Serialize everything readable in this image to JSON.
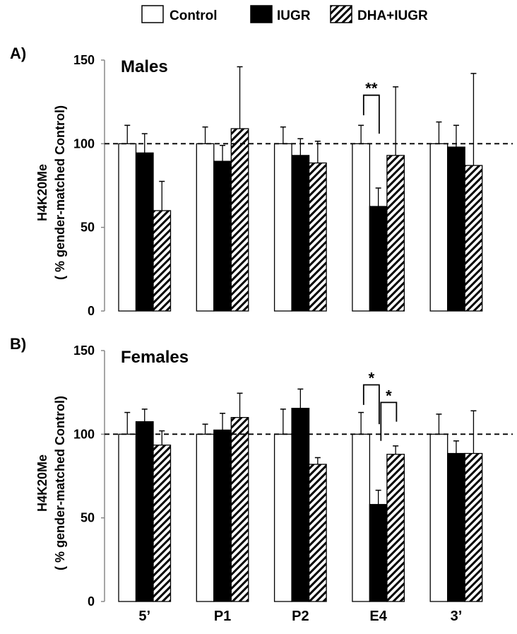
{
  "legend": [
    {
      "label": "Control",
      "fill": "white"
    },
    {
      "label": "IUGR",
      "fill": "black"
    },
    {
      "label": "DHA+IUGR",
      "fill": "hatched"
    }
  ],
  "ylabel_line1": "H4K20Me",
  "ylabel_line2": "( % gender-matched Control)",
  "chart_data": [
    {
      "type": "bar",
      "panel_label": "A)",
      "title": "Males",
      "categories": [
        "5’",
        "P1",
        "P2",
        "E4",
        "3’"
      ],
      "ylim": [
        0,
        150
      ],
      "yticks": [
        "0",
        "50",
        "100",
        "150"
      ],
      "reference_line": 100,
      "series": [
        {
          "name": "Control",
          "values": [
            100,
            100,
            100,
            100,
            100
          ],
          "error_upper": [
            111,
            110,
            110,
            111,
            113
          ]
        },
        {
          "name": "IUGR",
          "values": [
            94.5,
            89.5,
            93,
            62.5,
            98
          ],
          "error_upper": [
            106,
            99,
            103,
            73.5,
            111
          ]
        },
        {
          "name": "DHA+IUGR",
          "values": [
            60,
            109,
            88.5,
            93,
            87
          ],
          "error_upper": [
            77.5,
            146,
            101.5,
            134,
            142
          ]
        }
      ],
      "annotations": [
        {
          "category": "E4",
          "between": [
            "Control",
            "IUGR"
          ],
          "text": "**"
        }
      ]
    },
    {
      "type": "bar",
      "panel_label": "B)",
      "title": "Females",
      "categories": [
        "5’",
        "P1",
        "P2",
        "E4",
        "3’"
      ],
      "ylim": [
        0,
        150
      ],
      "yticks": [
        "0",
        "50",
        "100",
        "150"
      ],
      "reference_line": 100,
      "series": [
        {
          "name": "Control",
          "values": [
            100,
            100,
            100,
            100,
            100
          ],
          "error_upper": [
            113,
            106,
            115,
            113,
            112
          ]
        },
        {
          "name": "IUGR",
          "values": [
            107.5,
            102.5,
            115.5,
            58,
            88.5
          ],
          "error_upper": [
            115,
            112.5,
            127,
            66.5,
            96
          ]
        },
        {
          "name": "DHA+IUGR",
          "values": [
            93.5,
            110,
            82,
            88,
            88.5
          ],
          "error_upper": [
            102,
            124.5,
            86,
            93,
            114
          ]
        }
      ],
      "annotations": [
        {
          "category": "E4",
          "between": [
            "Control",
            "IUGR"
          ],
          "text": "*"
        },
        {
          "category": "E4",
          "between": [
            "IUGR",
            "DHA+IUGR"
          ],
          "text": "*"
        }
      ]
    }
  ]
}
